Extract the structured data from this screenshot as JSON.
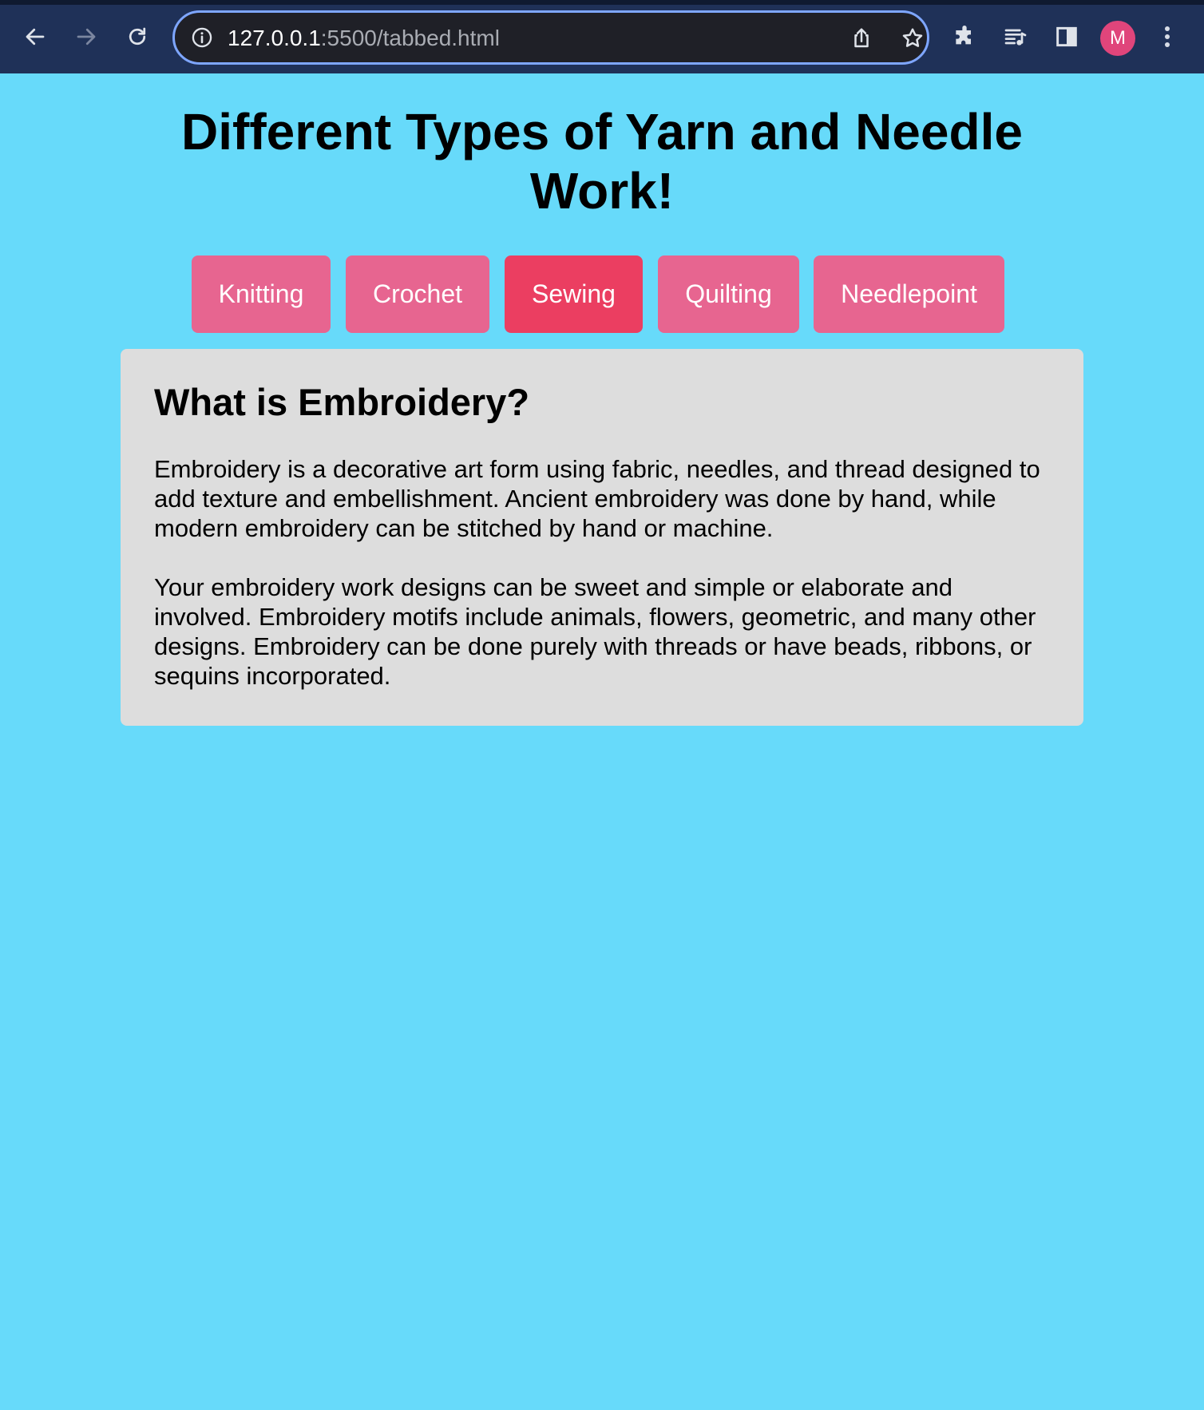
{
  "browser": {
    "url_host": "127.0.0.1",
    "url_path": ":5500/tabbed.html",
    "profile_initial": "M",
    "colors": {
      "toolbar": "#1f3158",
      "omnibox_border": "#7ea6ff",
      "avatar": "#e0457b"
    },
    "icons": {
      "back": "arrow-left-icon",
      "forward": "arrow-right-icon",
      "reload": "reload-icon",
      "site_info": "info-icon",
      "share": "share-icon",
      "bookmark": "star-icon",
      "extensions": "puzzle-icon",
      "media": "media-queue-icon",
      "side_panel": "side-panel-icon",
      "menu": "more-vert-icon"
    }
  },
  "page": {
    "title": "Different Types of Yarn and Needle Work!",
    "background": "#67dafa",
    "tabs": [
      {
        "label": "Knitting",
        "active": false
      },
      {
        "label": "Crochet",
        "active": false
      },
      {
        "label": "Sewing",
        "active": true
      },
      {
        "label": "Quilting",
        "active": false
      },
      {
        "label": "Needlepoint",
        "active": false
      }
    ],
    "tab_color": "#e76590",
    "tab_active_color": "#eb3e61",
    "panel": {
      "heading": "What is Embroidery?",
      "paragraphs": [
        "Embroidery is a decorative art form using fabric, needles, and thread designed to add texture and embellishment. Ancient embroidery was done by hand, while modern embroidery can be stitched by hand or machine.",
        "Your embroidery work designs can be sweet and simple or elaborate and involved. Embroidery motifs include animals, flowers, geometric, and many other designs. Embroidery can be done purely with threads or have beads, ribbons, or sequins incorporated."
      ],
      "background": "#dddddd"
    }
  }
}
